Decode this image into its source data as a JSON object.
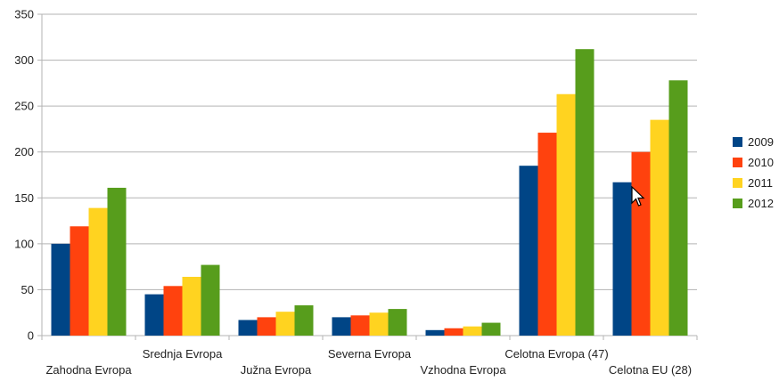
{
  "chart_data": {
    "type": "bar",
    "title": "",
    "xlabel": "",
    "ylabel": "",
    "ylim": [
      0,
      350
    ],
    "yticks": [
      0,
      50,
      100,
      150,
      200,
      250,
      300,
      350
    ],
    "grid": true,
    "legend_position": "right",
    "categories": [
      "Zahodna Evropa",
      "Srednja Evropa",
      "Južna Evropa",
      "Severna Evropa",
      "Vzhodna Evropa",
      "Celotna Evropa (47)",
      "Celotna EU (28)"
    ],
    "series": [
      {
        "name": "2009",
        "color": "#004586",
        "values": [
          100,
          45,
          17,
          20,
          6,
          185,
          167
        ]
      },
      {
        "name": "2010",
        "color": "#ff420e",
        "values": [
          119,
          54,
          20,
          22,
          8,
          221,
          200
        ]
      },
      {
        "name": "2011",
        "color": "#ffd320",
        "values": [
          139,
          64,
          26,
          25,
          10,
          263,
          235
        ]
      },
      {
        "name": "2012",
        "color": "#579d1c",
        "values": [
          161,
          77,
          33,
          29,
          14,
          312,
          278
        ]
      }
    ]
  }
}
